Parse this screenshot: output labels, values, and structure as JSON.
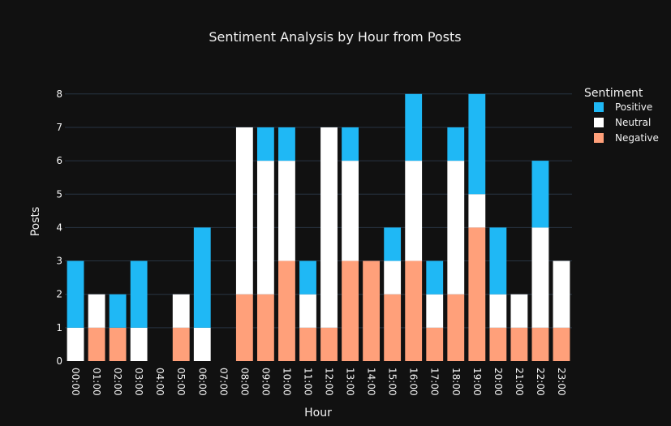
{
  "chart_data": {
    "type": "bar",
    "barmode": "stack",
    "title": "Sentiment Analysis by Hour from Posts",
    "xlabel": "Hour",
    "ylabel": "Posts",
    "ylim": [
      0,
      8.7
    ],
    "yticks": [
      0,
      1,
      2,
      3,
      4,
      5,
      6,
      7,
      8
    ],
    "grid": true,
    "legend_title": "Sentiment",
    "legend_position": "top-right",
    "categories": [
      "00:00",
      "01:00",
      "02:00",
      "03:00",
      "04:00",
      "05:00",
      "06:00",
      "07:00",
      "08:00",
      "09:00",
      "10:00",
      "11:00",
      "12:00",
      "13:00",
      "14:00",
      "15:00",
      "16:00",
      "17:00",
      "18:00",
      "19:00",
      "20:00",
      "21:00",
      "22:00",
      "23:00"
    ],
    "series": [
      {
        "name": "Negative",
        "color": "#ffa07a",
        "values": [
          0,
          1,
          1,
          0,
          0,
          1,
          0,
          0,
          2,
          2,
          3,
          1,
          1,
          3,
          3,
          2,
          3,
          1,
          2,
          4,
          1,
          1,
          1,
          1
        ]
      },
      {
        "name": "Neutral",
        "color": "#ffffff",
        "values": [
          1,
          1,
          0,
          1,
          0,
          1,
          1,
          0,
          5,
          4,
          3,
          1,
          6,
          3,
          0,
          1,
          3,
          1,
          4,
          1,
          1,
          1,
          3,
          2
        ]
      },
      {
        "name": "Positive",
        "color": "#1fb8f5",
        "values": [
          2,
          0,
          1,
          2,
          0,
          0,
          3,
          0,
          0,
          1,
          1,
          1,
          0,
          1,
          0,
          1,
          2,
          1,
          1,
          3,
          2,
          0,
          2,
          0
        ]
      }
    ],
    "legend_order": [
      "Positive",
      "Neutral",
      "Negative"
    ]
  }
}
